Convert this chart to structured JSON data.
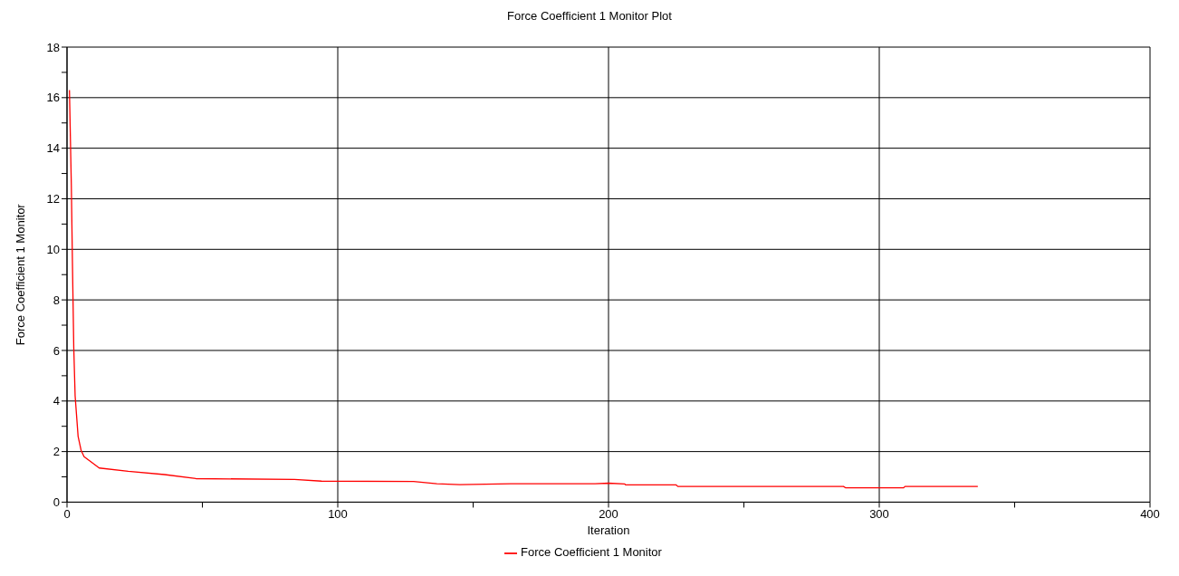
{
  "chart_data": {
    "type": "line",
    "title": "Force Coefficient 1 Monitor Plot",
    "xlabel": "Iteration",
    "ylabel": "Force Coefficient 1 Monitor",
    "series": [
      {
        "name": "Force Coefficient 1 Monitor",
        "color": "#ff0000",
        "x": [
          0.9,
          1.6,
          2,
          2.5,
          3,
          4.1,
          5.2,
          6.3,
          11.9,
          22.6,
          36,
          47.6,
          84,
          94,
          128,
          136.6,
          145,
          164,
          195,
          200,
          206,
          206.3,
          225,
          225.6,
          286.8,
          287.5,
          309,
          309.5,
          336.4
        ],
        "values": [
          16.3,
          12.5,
          9.5,
          6.1,
          4.2,
          2.6,
          2.05,
          1.8,
          1.35,
          1.22,
          1.09,
          0.93,
          0.9,
          0.83,
          0.82,
          0.73,
          0.69,
          0.73,
          0.73,
          0.75,
          0.72,
          0.68,
          0.68,
          0.62,
          0.62,
          0.57,
          0.57,
          0.62,
          0.62
        ]
      }
    ],
    "xlim": [
      0,
      400
    ],
    "xticks": [
      0,
      {
        "value": 50,
        "label": null
      },
      100,
      {
        "value": 150,
        "label": null
      },
      200,
      {
        "value": 250,
        "label": null
      },
      300,
      {
        "value": 350,
        "label": null
      },
      400
    ],
    "ylim": [
      0,
      18
    ],
    "yticks": [
      0,
      {
        "value": 1,
        "label": null
      },
      2,
      {
        "value": 3,
        "label": null
      },
      4,
      {
        "value": 5,
        "label": null
      },
      6,
      {
        "value": 7,
        "label": null
      },
      8,
      {
        "value": 9,
        "label": null
      },
      10,
      {
        "value": 11,
        "label": null
      },
      12,
      {
        "value": 13,
        "label": null
      },
      14,
      {
        "value": 15,
        "label": null
      },
      16,
      {
        "value": 17,
        "label": null
      },
      18
    ],
    "grid": true,
    "legend": "bottom",
    "marker": "none",
    "line_style": "solid"
  }
}
